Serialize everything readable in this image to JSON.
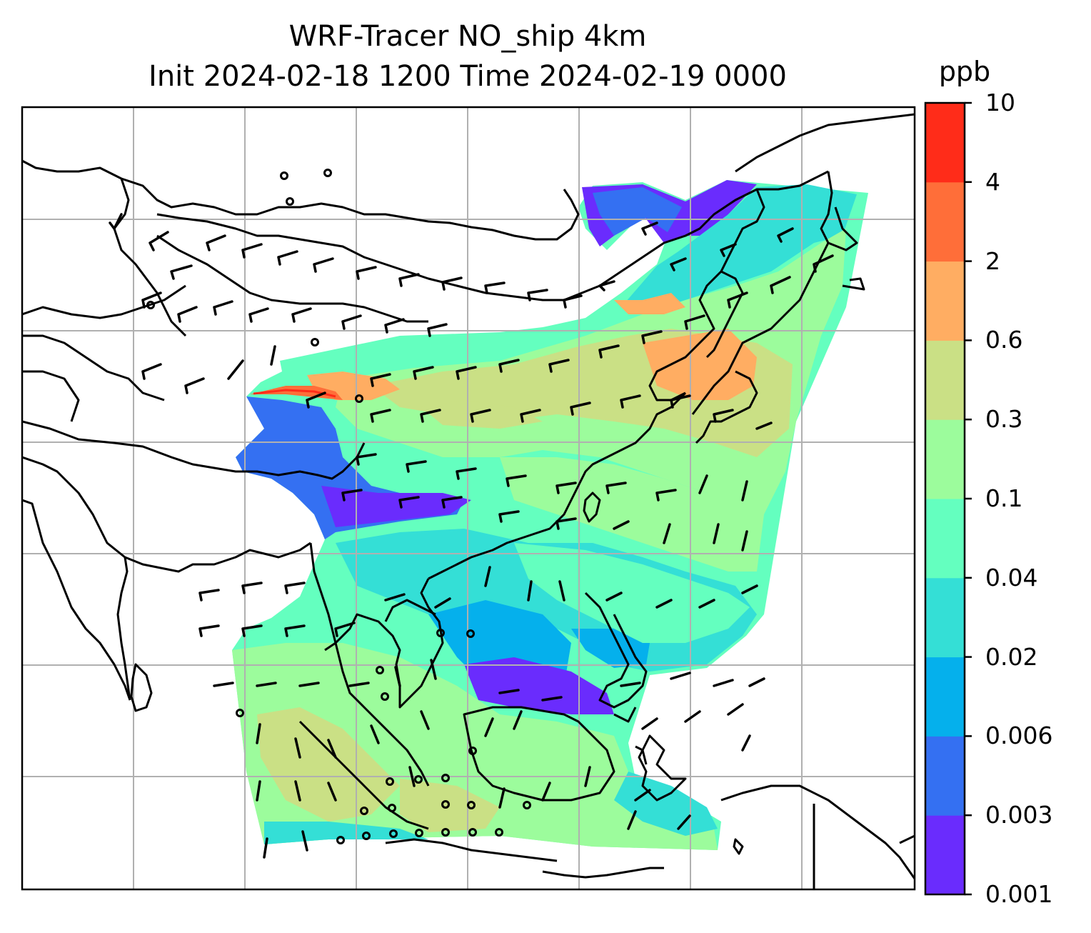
{
  "title": {
    "line1": "WRF-Tracer NO_ship 4km",
    "line2": "Init 2024-02-18 1200 Time 2024-02-19 0000"
  },
  "colorbar": {
    "unit": "ppb",
    "levels": [
      "0.001",
      "0.003",
      "0.006",
      "0.02",
      "0.04",
      "0.1",
      "0.3",
      "0.6",
      "2",
      "4",
      "10"
    ],
    "colors": [
      "#6a2cfd",
      "#3470f2",
      "#05b0ec",
      "#34dfd6",
      "#64ffbf",
      "#9cfc9c",
      "#cae085",
      "#ffad62",
      "#ff6e39",
      "#ff2c19"
    ]
  },
  "map": {
    "field": "NO_ship",
    "gridlines": true,
    "wind_barbs": true,
    "colors": {
      "land_outline": "#000000",
      "grid": "#b0b0b0",
      "background": "#ffffff"
    }
  }
}
